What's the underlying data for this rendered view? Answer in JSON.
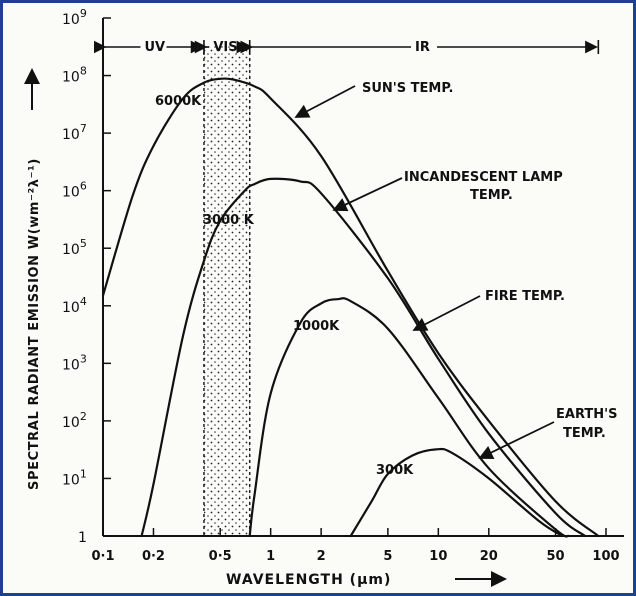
{
  "chart_data": {
    "type": "line",
    "title": "",
    "xlabel": "WAVELENGTH (µm)",
    "ylabel": "SPECTRAL RADIANT EMISSION  W(wm⁻²λ⁻¹)",
    "x_scale": "log",
    "y_scale": "log",
    "xlim": [
      0.1,
      100
    ],
    "ylim": [
      1,
      1000000000
    ],
    "x_ticks": [
      {
        "value": 0.1,
        "label": "0·1"
      },
      {
        "value": 0.2,
        "label": "0·2"
      },
      {
        "value": 0.5,
        "label": "0·5"
      },
      {
        "value": 1,
        "label": "1"
      },
      {
        "value": 2,
        "label": "2"
      },
      {
        "value": 5,
        "label": "5"
      },
      {
        "value": 10,
        "label": "10"
      },
      {
        "value": 20,
        "label": "20"
      },
      {
        "value": 50,
        "label": "50"
      },
      {
        "value": 100,
        "label": "100"
      }
    ],
    "y_ticks": [
      {
        "value": 1,
        "base": "1",
        "exp": ""
      },
      {
        "value": 10,
        "base": "10",
        "exp": "1"
      },
      {
        "value": 100,
        "base": "10",
        "exp": "2"
      },
      {
        "value": 1000,
        "base": "10",
        "exp": "3"
      },
      {
        "value": 10000,
        "base": "10",
        "exp": "4"
      },
      {
        "value": 100000,
        "base": "10",
        "exp": "5"
      },
      {
        "value": 1000000,
        "base": "10",
        "exp": "6"
      },
      {
        "value": 10000000,
        "base": "10",
        "exp": "7"
      },
      {
        "value": 100000000,
        "base": "10",
        "exp": "8"
      },
      {
        "value": 1000000000,
        "base": "10",
        "exp": "9"
      }
    ],
    "bands": [
      {
        "name": "UV",
        "from": 0.1,
        "to": 0.4
      },
      {
        "name": "VIS",
        "from": 0.4,
        "to": 0.75
      },
      {
        "name": "IR",
        "from": 0.75,
        "to": 90
      }
    ],
    "visible_band_shaded": true,
    "series": [
      {
        "temp_label": "6000K",
        "annotation": "SUN'S TEMP.",
        "x": [
          0.1,
          0.15,
          0.2,
          0.3,
          0.4,
          0.5,
          0.6,
          0.8,
          1,
          2,
          5,
          10,
          20,
          50,
          90
        ],
        "y": [
          15000,
          800000,
          6000000,
          40000000,
          75000000,
          88000000,
          85000000,
          65000000,
          40000000,
          4000000,
          40000,
          1500,
          100,
          4,
          1
        ]
      },
      {
        "temp_label": "3000 K",
        "annotation": "INCANDESCENT LAMP\nTEMP.",
        "x": [
          0.17,
          0.2,
          0.3,
          0.4,
          0.5,
          0.7,
          0.8,
          1,
          1.5,
          2,
          5,
          10,
          20,
          50,
          75
        ],
        "y": [
          1,
          8,
          3000,
          60000,
          300000,
          1000000,
          1300000,
          1600000,
          1450000,
          900000,
          30000,
          1200,
          60,
          2.5,
          1
        ]
      },
      {
        "temp_label": "1000K",
        "annotation": "FIRE TEMP.",
        "x": [
          0.75,
          0.8,
          1,
          1.5,
          2,
          2.5,
          3,
          5,
          10,
          20,
          50,
          60
        ],
        "y": [
          1,
          5,
          300,
          5000,
          11000,
          13000,
          12000,
          4000,
          250,
          15,
          1.3,
          1
        ]
      },
      {
        "temp_label": "300K",
        "annotation": "EARTH'S\nTEMP.",
        "x": [
          3,
          4,
          5,
          7,
          9.7,
          12,
          20,
          40,
          55
        ],
        "y": [
          1,
          4,
          12,
          25,
          32,
          28,
          10,
          1.8,
          1
        ]
      }
    ]
  }
}
